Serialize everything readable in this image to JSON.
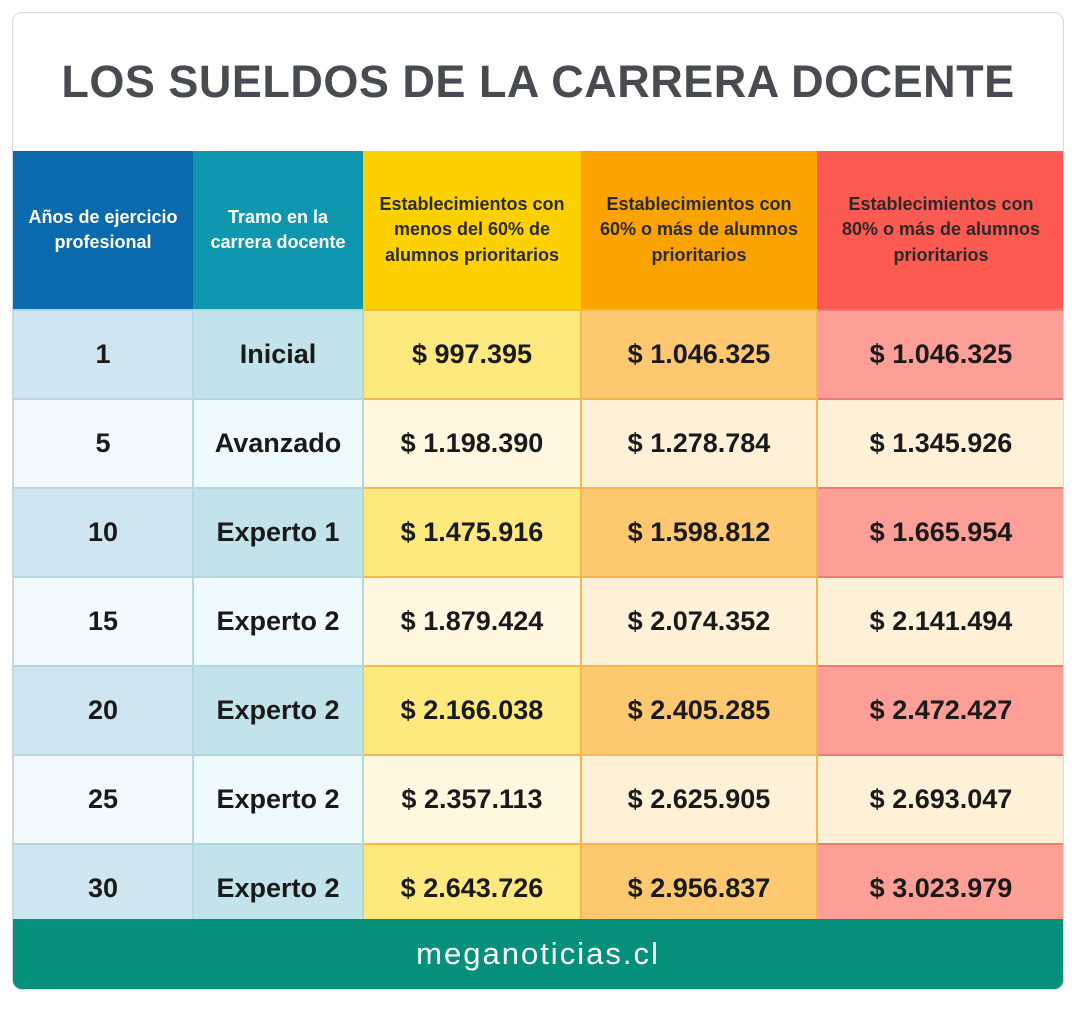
{
  "header": {
    "title": "LOS SUELDOS DE LA CARRERA DOCENTE"
  },
  "table": {
    "columns": [
      "Años de ejercicio profesional",
      "Tramo en la carrera docente",
      "Establecimientos con menos del 60% de alumnos prioritarios",
      "Establecimientos con 60% o más de alumnos prioritarios",
      "Establecimientos con 80% o más de alumnos prioritarios"
    ],
    "rows": [
      [
        "1",
        "Inicial",
        "$ 997.395",
        "$ 1.046.325",
        "$ 1.046.325"
      ],
      [
        "5",
        "Avanzado",
        "$ 1.198.390",
        "$ 1.278.784",
        "$ 1.345.926"
      ],
      [
        "10",
        "Experto 1",
        "$ 1.475.916",
        "$ 1.598.812",
        "$ 1.665.954"
      ],
      [
        "15",
        "Experto 2",
        "$ 1.879.424",
        "$ 2.074.352",
        "$ 2.141.494"
      ],
      [
        "20",
        "Experto 2",
        "$ 2.166.038",
        "$ 2.405.285",
        "$ 2.472.427"
      ],
      [
        "25",
        "Experto 2",
        "$ 2.357.113",
        "$ 2.625.905",
        "$ 2.693.047"
      ],
      [
        "30",
        "Experto 2",
        "$ 2.643.726",
        "$ 2.956.837",
        "$ 3.023.979"
      ]
    ]
  },
  "footer": {
    "source": "meganoticias.cl"
  }
}
